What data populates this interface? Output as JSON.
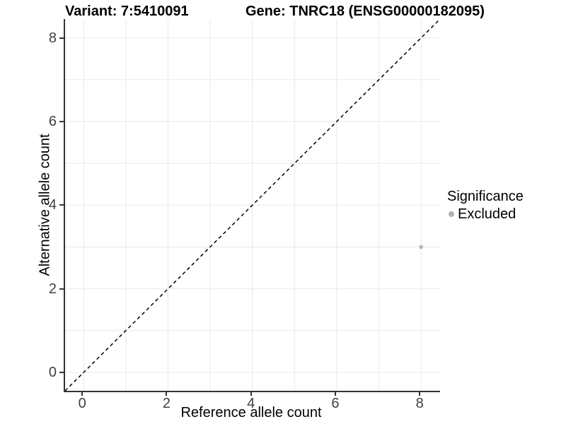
{
  "chart_data": {
    "type": "scatter",
    "titles": {
      "left": "Variant: 7:5410091",
      "right": "Gene: TNRC18 (ENSG00000182095)"
    },
    "xlabel": "Reference allele count",
    "ylabel": "Alternative allele count",
    "xlim": [
      -0.44,
      8.45
    ],
    "ylim": [
      -0.44,
      8.45
    ],
    "x_ticks": [
      0,
      2,
      4,
      6,
      8
    ],
    "y_ticks": [
      0,
      2,
      4,
      6,
      8
    ],
    "grid": {
      "show": true,
      "values": [
        0,
        1,
        2,
        3,
        4,
        5,
        6,
        7,
        8
      ],
      "color": "#e8e8e8"
    },
    "reference_line": {
      "type": "identity y=x",
      "style": "dashed",
      "color": "#000000"
    },
    "series": [
      {
        "name": "Excluded",
        "color": "#b5b5b5",
        "points": [
          {
            "x": 8,
            "y": 3
          }
        ]
      }
    ],
    "legend": {
      "title": "Significance",
      "position": "right",
      "items": [
        {
          "label": "Excluded",
          "color": "#b0b0b0"
        }
      ]
    },
    "colors": {
      "axis_line": "#333333",
      "tick_text": "#404040",
      "title_text": "#000000"
    }
  }
}
